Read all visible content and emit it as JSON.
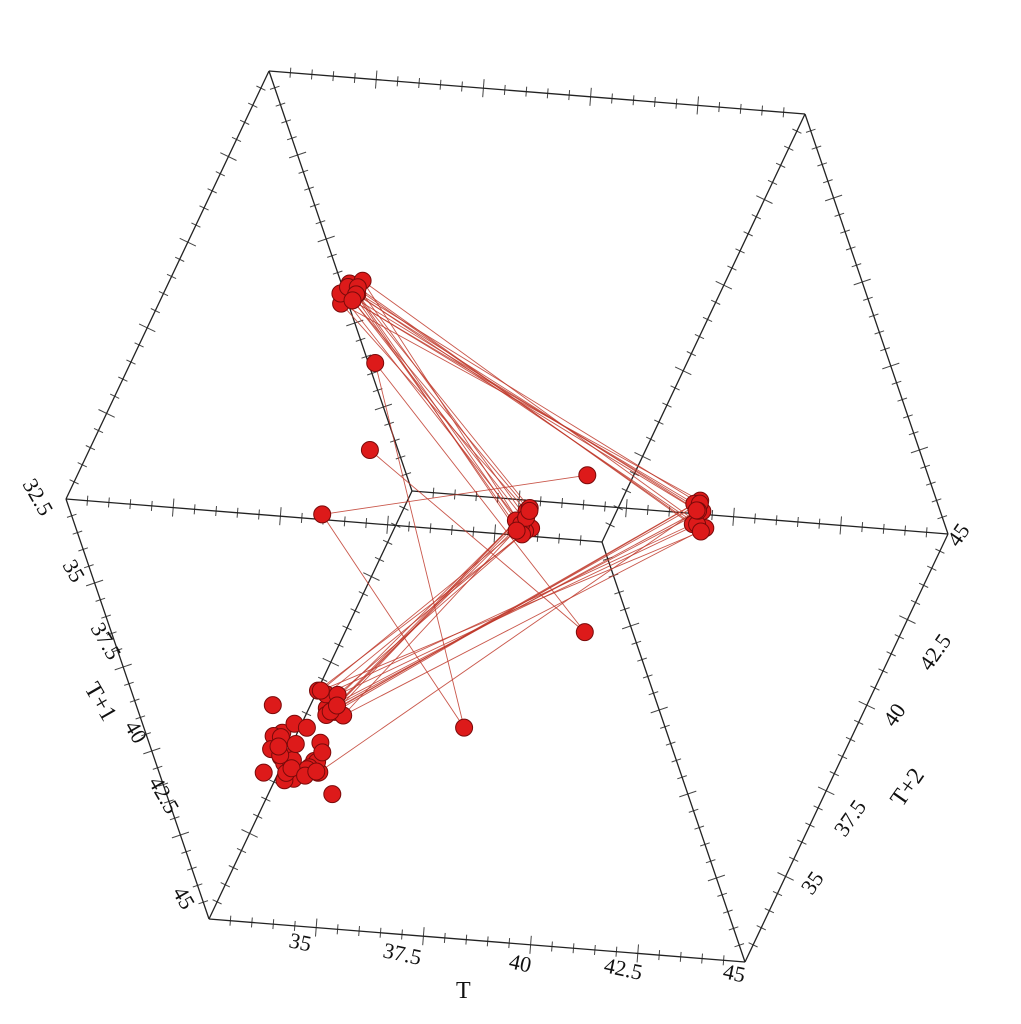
{
  "chart_data": {
    "type": "scatter",
    "projection": "3d",
    "title": "",
    "axes": {
      "x": {
        "label": "T",
        "range": [
          32.5,
          45
        ],
        "ticks": [
          "35",
          "37.5",
          "40",
          "42.5",
          "45"
        ]
      },
      "y": {
        "label": "T+1",
        "range": [
          32.5,
          45
        ],
        "ticks": [
          "32.5",
          "35",
          "37.5",
          "40",
          "42.5",
          "45"
        ]
      },
      "z": {
        "label": "T+2",
        "range": [
          32.5,
          45
        ],
        "ticks": [
          "35",
          "37.5",
          "40",
          "42.5",
          "45"
        ]
      }
    },
    "series": [
      {
        "connected": true,
        "color": "#dd1a1a",
        "points": [
          [
            43.4,
            44.0,
            37.7
          ],
          [
            37.8,
            37.5,
            37.6
          ],
          [
            37.6,
            44.0,
            43.6
          ],
          [
            43.6,
            37.4,
            43.8
          ],
          [
            43.7,
            43.8,
            37.5
          ],
          [
            37.5,
            37.6,
            37.8
          ],
          [
            37.7,
            44.1,
            43.4
          ],
          [
            43.5,
            37.5,
            44.0
          ],
          [
            43.9,
            43.7,
            37.6
          ],
          [
            37.6,
            37.8,
            37.6
          ],
          [
            37.5,
            44.0,
            43.8
          ],
          [
            43.8,
            37.6,
            43.6
          ],
          [
            43.6,
            43.9,
            37.8
          ],
          [
            37.8,
            37.6,
            37.5
          ],
          [
            37.6,
            43.8,
            44.0
          ],
          [
            44.0,
            37.4,
            43.7
          ],
          [
            44.1,
            43.6,
            37.7
          ],
          [
            37.7,
            37.7,
            37.6
          ],
          [
            37.5,
            44.1,
            43.5
          ],
          [
            43.5,
            37.6,
            43.9
          ],
          [
            43.8,
            43.8,
            37.4
          ],
          [
            37.4,
            37.5,
            37.8
          ],
          [
            37.8,
            43.9,
            43.8
          ],
          [
            43.8,
            37.5,
            43.6
          ],
          [
            43.7,
            43.7,
            37.9
          ],
          [
            37.9,
            37.7,
            37.5
          ],
          [
            37.5,
            44.0,
            43.7
          ],
          [
            43.7,
            37.6,
            44.1
          ],
          [
            43.9,
            43.8,
            37.6
          ],
          [
            37.6,
            37.6,
            37.7
          ],
          [
            37.7,
            43.9,
            43.9
          ],
          [
            43.9,
            37.4,
            43.5
          ],
          [
            43.5,
            44.0,
            37.8
          ],
          [
            37.8,
            37.8,
            37.5
          ],
          [
            37.6,
            43.8,
            43.6
          ],
          [
            43.6,
            37.5,
            43.8
          ],
          [
            43.7,
            43.6,
            37.6
          ],
          [
            37.6,
            37.6,
            37.9
          ],
          [
            37.9,
            44.0,
            43.7
          ],
          [
            43.7,
            37.6,
            43.9
          ],
          [
            44.5,
            43.8,
            36.4
          ],
          [
            43.8,
            44.6,
            36.8
          ],
          [
            44.9,
            43.5,
            36.2
          ],
          [
            43.3,
            44.8,
            37.1
          ],
          [
            44.2,
            44.1,
            35.9
          ],
          [
            44.7,
            43.9,
            36.6
          ],
          [
            44.0,
            44.5,
            36.3
          ],
          [
            43.6,
            44.3,
            36.9
          ],
          [
            44.4,
            44.6,
            36.5
          ],
          [
            44.8,
            44.2,
            37.0
          ],
          [
            43.9,
            43.7,
            36.7
          ],
          [
            44.3,
            44.9,
            36.1
          ],
          [
            44.6,
            44.0,
            36.8
          ],
          [
            44.1,
            44.4,
            36.4
          ],
          [
            43.7,
            44.7,
            36.6
          ],
          [
            44.9,
            44.3,
            36.9
          ],
          [
            44.2,
            43.9,
            36.2
          ],
          [
            44.5,
            44.5,
            36.7
          ],
          [
            44.0,
            44.8,
            36.5
          ],
          [
            43.8,
            44.1,
            37.0
          ],
          [
            44.7,
            44.6,
            36.3
          ],
          [
            44.3,
            43.8,
            36.8
          ],
          [
            44.8,
            44.7,
            36.6
          ],
          [
            44.1,
            44.2,
            36.1
          ],
          [
            43.5,
            44.4,
            36.4
          ],
          [
            44.6,
            44.9,
            36.9
          ],
          [
            44.4,
            44.0,
            36.2
          ],
          [
            44.0,
            44.3,
            36.7
          ],
          [
            43.9,
            44.6,
            36.5
          ],
          [
            44.9,
            44.1,
            36.8
          ],
          [
            39.5,
            43.0,
            41.0
          ],
          [
            44.0,
            39.0,
            40.5
          ],
          [
            39.0,
            43.5,
            43.0
          ],
          [
            44.5,
            41.0,
            38.0
          ],
          [
            40.5,
            44.0,
            40.0
          ],
          [
            43.0,
            40.0,
            44.0
          ]
        ]
      }
    ]
  }
}
